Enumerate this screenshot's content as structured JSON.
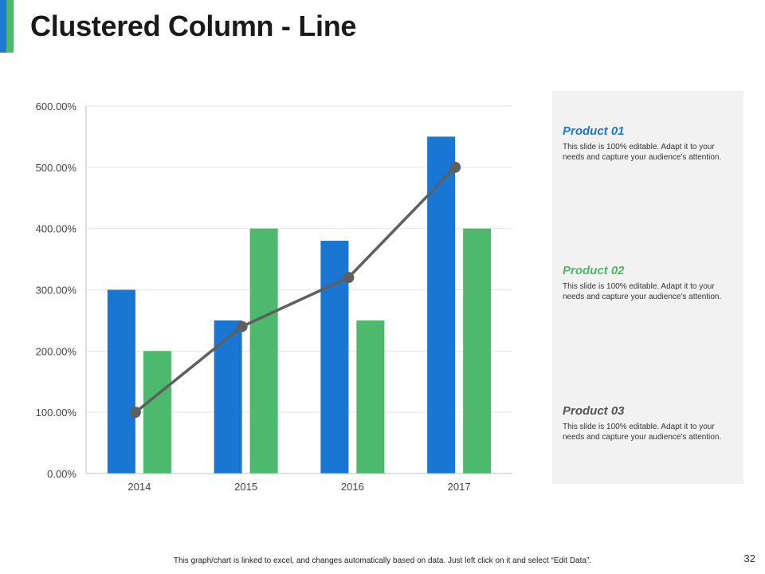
{
  "slide": {
    "title": "Clustered Column - Line",
    "footer": "This graph/chart is linked to excel, and changes automatically based on data. Just left click on it and select “Edit Data”.",
    "page_number": "32"
  },
  "colors": {
    "accent_blue": "#1f78d1",
    "accent_green": "#4db86a",
    "series_1": "#1976d2",
    "series_2": "#4cb96d",
    "line": "#5f5f5f",
    "product_01": "#1f78d1",
    "product_02": "#4db86a",
    "product_03": "#555555",
    "panel_bg": "#f2f2f2"
  },
  "chart_data": {
    "type": "bar",
    "categories": [
      "2014",
      "2015",
      "2016",
      "2017"
    ],
    "series": [
      {
        "type": "bar",
        "values": [
          300,
          250,
          380,
          550
        ]
      },
      {
        "type": "bar",
        "values": [
          200,
          400,
          250,
          400
        ]
      },
      {
        "type": "line",
        "values": [
          100,
          240,
          320,
          500
        ]
      }
    ],
    "yticks": [
      "0.00%",
      "100.00%",
      "200.00%",
      "300.00%",
      "400.00%",
      "500.00%",
      "600.00%"
    ],
    "ylim": [
      0,
      600
    ],
    "grid": true,
    "title": "",
    "xlabel": "",
    "ylabel": ""
  },
  "products": [
    {
      "title": "Product 01",
      "description": "This slide is 100% editable.  Adapt it to your needs and capture your audience's attention."
    },
    {
      "title": "Product 02",
      "description": "This slide is 100% editable.  Adapt it to your needs and capture your audience's attention."
    },
    {
      "title": "Product 03",
      "description": "This slide is 100% editable.  Adapt it to your needs and capture your audience's attention."
    }
  ]
}
